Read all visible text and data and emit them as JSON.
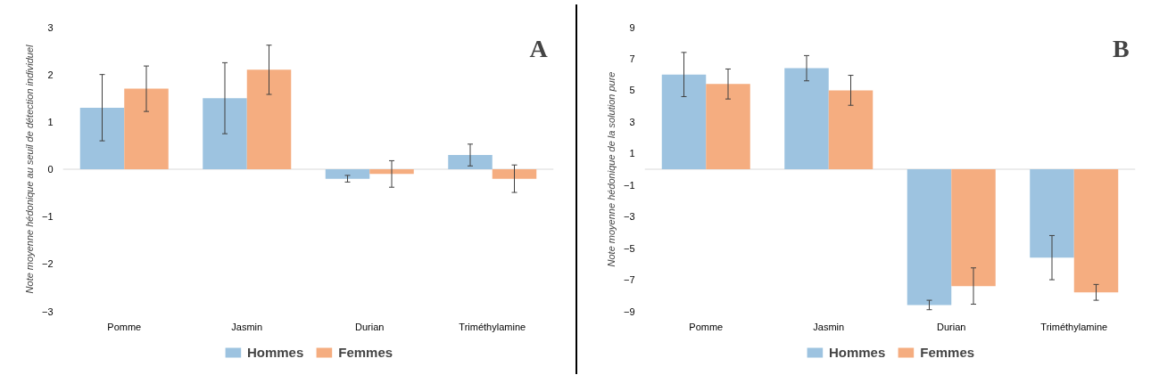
{
  "chart_data": [
    {
      "type": "bar",
      "categories": [
        "Pomme",
        "Jasmin",
        "Durian",
        "Triméthylamine"
      ],
      "ylabel": "Note moyenne hédonique au seuil de détection individuel",
      "ylim": [
        -3,
        3
      ],
      "yticks": [
        -3,
        -2,
        -1,
        0,
        1,
        2,
        3
      ],
      "grid": false,
      "legend": "bottom",
      "annotations": [
        "A"
      ],
      "ref_lines": [
        {
          "axis": "y",
          "value": 0,
          "color": "#d9d9d9"
        }
      ],
      "series": [
        {
          "name": "Hommes",
          "color": "#9dc3e0",
          "values": [
            1.3,
            1.5,
            -0.2,
            0.3
          ],
          "errors": [
            0.7,
            0.75,
            0.07,
            0.23
          ]
        },
        {
          "name": "Femmes",
          "color": "#f5ad80",
          "values": [
            1.7,
            2.1,
            -0.1,
            -0.2
          ],
          "errors": [
            0.48,
            0.52,
            0.28,
            0.29
          ]
        }
      ]
    },
    {
      "type": "bar",
      "categories": [
        "Pomme",
        "Jasmin",
        "Durian",
        "Triméthylamine"
      ],
      "ylabel": "Note moyenne hédonique de la solution pure",
      "ylim": [
        -9,
        9
      ],
      "yticks": [
        -9,
        -7,
        -5,
        -3,
        -1,
        1,
        3,
        5,
        7,
        9
      ],
      "grid": false,
      "legend": "bottom",
      "annotations": [
        "B"
      ],
      "ref_lines": [
        {
          "axis": "y",
          "value": 0,
          "color": "#d9d9d9"
        }
      ],
      "series": [
        {
          "name": "Hommes",
          "color": "#9dc3e0",
          "values": [
            6.0,
            6.4,
            -8.6,
            -5.6
          ],
          "errors": [
            1.4,
            0.8,
            0.3,
            1.4
          ]
        },
        {
          "name": "Femmes",
          "color": "#f5ad80",
          "values": [
            5.4,
            5.0,
            -7.4,
            -7.8
          ],
          "errors": [
            0.95,
            0.95,
            1.15,
            0.5
          ]
        }
      ]
    }
  ]
}
